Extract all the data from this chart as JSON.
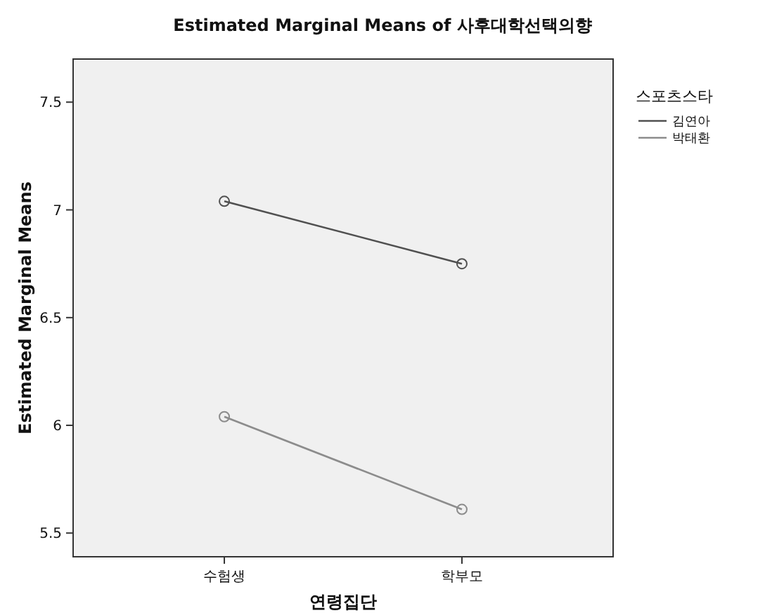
{
  "chart_data": {
    "type": "line",
    "title": "Estimated Marginal Means of 사후대학선택의향",
    "xlabel": "연령집단",
    "ylabel": "Estimated Marginal Means",
    "legend_title": "스포츠스타",
    "categories": [
      "수험생",
      "학부모"
    ],
    "series": [
      {
        "name": "김연아",
        "color": "#505050",
        "values": [
          7.04,
          6.75
        ]
      },
      {
        "name": "박태환",
        "color": "#8c8c8c",
        "values": [
          6.04,
          5.61
        ]
      }
    ],
    "ylim": [
      5.39,
      7.7
    ],
    "yticks": [
      {
        "value": 5.5,
        "label": "5.5"
      },
      6,
      {
        "value": 6.5,
        "label": "6.5"
      },
      7,
      {
        "value": 7.5,
        "label": "7.5"
      }
    ],
    "marker": "circle",
    "line_style": "solid",
    "grid": false,
    "legend": "right"
  }
}
